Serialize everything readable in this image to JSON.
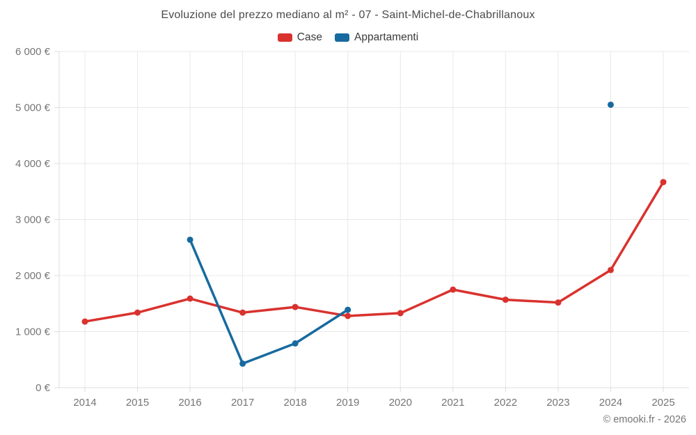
{
  "chart_data": {
    "type": "line",
    "title": "Evoluzione del prezzo mediano al m² - 07 - Saint-Michel-de-Chabrillanoux",
    "x_categories": [
      "2014",
      "2015",
      "2016",
      "2017",
      "2018",
      "2019",
      "2020",
      "2021",
      "2022",
      "2023",
      "2024",
      "2025"
    ],
    "series": [
      {
        "name": "Case",
        "color": "#d9322e",
        "values": [
          1180,
          1340,
          1590,
          1340,
          1440,
          1280,
          1330,
          1750,
          1570,
          1520,
          2100,
          3670
        ]
      },
      {
        "name": "Appartamenti",
        "color": "#176a9f",
        "values": [
          null,
          null,
          2640,
          430,
          790,
          1390,
          null,
          null,
          null,
          null,
          5050,
          null
        ]
      }
    ],
    "ylim": [
      0,
      6000
    ],
    "ytick_values": [
      0,
      1000,
      2000,
      3000,
      4000,
      5000,
      6000
    ],
    "ytick_labels": [
      "0 €",
      "1 000 €",
      "2 000 €",
      "3 000 €",
      "4 000 €",
      "5 000 €",
      "6 000 €"
    ],
    "ylabel": "",
    "xlabel": "",
    "grid": true,
    "legend_position": "top",
    "grid_color": "#e8e8e8",
    "tick_color": "#dcdcdc"
  },
  "attribution": "© emooki.fr - 2026"
}
